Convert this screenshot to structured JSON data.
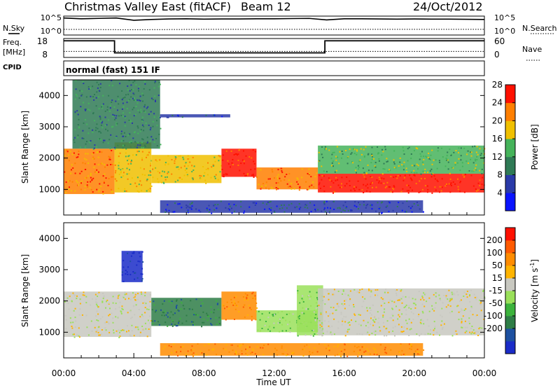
{
  "header": {
    "title": "Christmas Valley East (fitACF)",
    "beam": "Beam 12",
    "date": "24/Oct/2012"
  },
  "strip_labels": {
    "nsky": "N.Sky",
    "nsearch": "N.Search",
    "freq": "Freq.",
    "freq_unit": "[MHz]",
    "nave": "Nave",
    "cpid": "CPID",
    "cpid_value": "normal (fast) 151 IF"
  },
  "chart_data": [
    {
      "type": "line",
      "panel": "noise",
      "yticks_left": [
        "10^5",
        "10^0"
      ],
      "yticks_right": [
        "10^5",
        "10^0"
      ],
      "series": [
        {
          "name": "N.Sky",
          "x": [
            0,
            1,
            2,
            3,
            4,
            5,
            6,
            7,
            8,
            9,
            10,
            11,
            12,
            13,
            14,
            15,
            16,
            17,
            18,
            19,
            20,
            21,
            22,
            23,
            24
          ],
          "values": [
            0.9,
            0.86,
            0.88,
            0.9,
            0.78,
            0.82,
            0.85,
            0.86,
            0.84,
            0.85,
            0.85,
            0.86,
            0.86,
            0.87,
            0.88,
            0.8,
            0.86,
            0.86,
            0.85,
            0.84,
            0.85,
            0.84,
            0.84,
            0.83,
            0.82
          ]
        },
        {
          "name": "N.Search",
          "x": [
            0,
            4,
            8,
            12,
            16,
            20,
            24
          ],
          "values": [
            0.3,
            0.28,
            0.3,
            0.3,
            0.3,
            0.3,
            0.3
          ]
        }
      ]
    },
    {
      "type": "line",
      "panel": "frequency",
      "ylim_left": [
        8,
        18
      ],
      "yticks_left": [
        18,
        8
      ],
      "ylim_right": [
        0,
        60
      ],
      "yticks_right": [
        60,
        0
      ],
      "series": [
        {
          "name": "Freq.",
          "step": true,
          "x": [
            0,
            2.9,
            2.9,
            14.9,
            14.9,
            24
          ],
          "values": [
            16.8,
            16.8,
            10.4,
            10.4,
            16.8,
            16.8
          ]
        },
        {
          "name": "Nave",
          "x": [
            0,
            24
          ],
          "values": [
            11.2,
            11.2
          ]
        }
      ]
    },
    {
      "type": "heatmap",
      "panel": "power",
      "ylabel": "Slant Range [km]",
      "ylim": [
        180,
        4500
      ],
      "yticks": [
        1000,
        2000,
        3000,
        4000
      ],
      "xlim": [
        0,
        24
      ],
      "colorbar": {
        "label": "Power [dB]",
        "ticks": [
          4,
          8,
          12,
          16,
          20,
          24,
          28
        ],
        "colors": [
          "#0a14ff",
          "#2a3aa8",
          "#2f7a55",
          "#45b35a",
          "#f0c000",
          "#ff7f00",
          "#ff1000"
        ]
      },
      "regions": [
        {
          "t": [
            0,
            2.9
          ],
          "r": [
            850,
            2300
          ],
          "level": 5
        },
        {
          "t": [
            2.9,
            5.0
          ],
          "r": [
            900,
            2500
          ],
          "level": 4
        },
        {
          "t": [
            5.0,
            9.0
          ],
          "r": [
            1200,
            2100
          ],
          "level": 4
        },
        {
          "t": [
            9.0,
            11.0
          ],
          "r": [
            1400,
            2300
          ],
          "level": 6
        },
        {
          "t": [
            11.0,
            14.5
          ],
          "r": [
            1000,
            1700
          ],
          "level": 5
        },
        {
          "t": [
            14.5,
            24.0
          ],
          "r": [
            900,
            1500
          ],
          "level": 6
        },
        {
          "t": [
            14.5,
            24.0
          ],
          "r": [
            1500,
            2400
          ],
          "level": 3
        },
        {
          "t": [
            5.5,
            20.5
          ],
          "r": [
            250,
            650
          ],
          "level": 1
        },
        {
          "t": [
            0.5,
            5.5
          ],
          "r": [
            2300,
            4500
          ],
          "level": 2
        },
        {
          "t": [
            5.5,
            9.5
          ],
          "r": [
            3300,
            3400
          ],
          "level": 1
        }
      ]
    },
    {
      "type": "heatmap",
      "panel": "velocity",
      "ylabel": "Slant Range [km]",
      "ylim": [
        180,
        4500
      ],
      "yticks": [
        1000,
        2000,
        3000,
        4000
      ],
      "xlim": [
        0,
        24
      ],
      "xticks": [
        "00:00",
        "04:00",
        "08:00",
        "12:00",
        "16:00",
        "20:00",
        "00:00"
      ],
      "xlabel": "Time UT",
      "colorbar": {
        "label": "Velocity [m s",
        "label_sup": "-1",
        "label_close": "]",
        "ticks": [
          200,
          100,
          50,
          15,
          -15,
          -50,
          -100,
          -200
        ],
        "colors": [
          "#1a2cc8",
          "#1d50a0",
          "#2e7d46",
          "#3cb33c",
          "#9ae05a",
          "#c8c8c0",
          "#ffb400",
          "#ff8c00",
          "#ff5a00",
          "#ff1000"
        ]
      },
      "regions": [
        {
          "t": [
            0,
            5.0
          ],
          "r": [
            850,
            2300
          ],
          "level": 5
        },
        {
          "t": [
            5.0,
            9.0
          ],
          "r": [
            1200,
            2100
          ],
          "level": 2
        },
        {
          "t": [
            9.0,
            11.0
          ],
          "r": [
            1400,
            2300
          ],
          "level": 7
        },
        {
          "t": [
            11.0,
            14.5
          ],
          "r": [
            1000,
            1700
          ],
          "level": 4
        },
        {
          "t": [
            13.3,
            14.8
          ],
          "r": [
            900,
            2500
          ],
          "level": 4
        },
        {
          "t": [
            14.5,
            24.0
          ],
          "r": [
            900,
            1500
          ],
          "level": 5
        },
        {
          "t": [
            14.5,
            24.0
          ],
          "r": [
            1500,
            2400
          ],
          "level": 5
        },
        {
          "t": [
            5.5,
            20.5
          ],
          "r": [
            250,
            650
          ],
          "level": 7
        },
        {
          "t": [
            3.3,
            4.5
          ],
          "r": [
            2600,
            3600
          ],
          "level": 0
        }
      ]
    }
  ]
}
